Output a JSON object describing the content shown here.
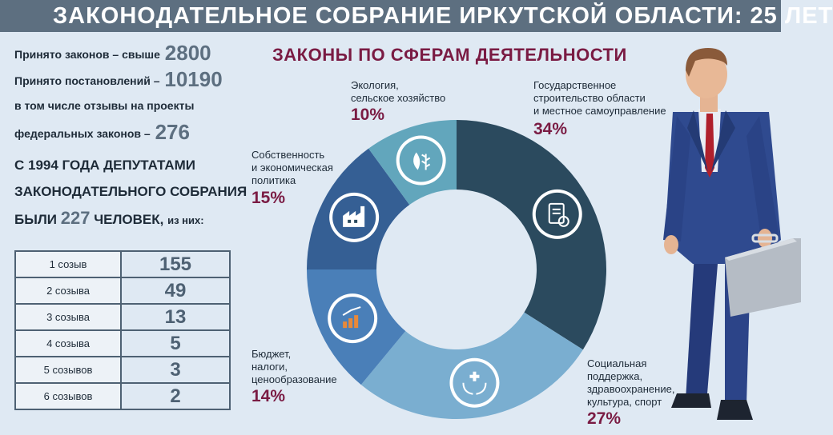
{
  "banner_title": "ЗАКОНОДАТЕЛЬНОЕ СОБРАНИЕ ИРКУТСКОЙ ОБЛАСТИ: 25 ЛЕТ",
  "stats": {
    "laws_label": "Принято законов – свыше",
    "laws_value": "2800",
    "resolutions_label": "Принято постановлений –",
    "resolutions_value": "10190",
    "reviews_line1": "в том числе отзывы на проекты",
    "reviews_line2": "федеральных законов –",
    "reviews_value": "276"
  },
  "deputies": {
    "line1": "С 1994 ГОДА ДЕПУТАТАМИ",
    "line2": "ЗАКОНОДАТЕЛЬНОГО СОБРАНИЯ",
    "line3_prefix": "БЫЛИ",
    "total": "227",
    "line3_suffix": "ЧЕЛОВЕК,",
    "line3_small": "из них:"
  },
  "convocations": [
    {
      "label": "1 созыв",
      "value": "155"
    },
    {
      "label": "2 созыва",
      "value": "49"
    },
    {
      "label": "3 созыва",
      "value": "13"
    },
    {
      "label": "4 созыва",
      "value": "5"
    },
    {
      "label": "5 созывов",
      "value": "3"
    },
    {
      "label": "6 созывов",
      "value": "2"
    }
  ],
  "chart_data": {
    "type": "pie",
    "title": "ЗАКОНЫ ПО СФЕРАМ ДЕЯТЕЛЬНОСТИ",
    "slices": [
      {
        "label_lines": [
          "Государственное",
          "строительство области",
          "и местное самоуправление"
        ],
        "value": 34,
        "pct_text": "34%",
        "color": "#2b4a5e",
        "icon": "document-check-icon"
      },
      {
        "label_lines": [
          "Социальная",
          "поддержка,",
          "здравоохранение,",
          "культура, спорт"
        ],
        "value": 27,
        "pct_text": "27%",
        "color": "#7aaed0",
        "icon": "health-hands-icon"
      },
      {
        "label_lines": [
          "Бюджет,",
          "налоги,",
          "ценообразование"
        ],
        "value": 14,
        "pct_text": "14%",
        "color": "#4a7fb8",
        "icon": "growth-chart-icon"
      },
      {
        "label_lines": [
          "Собственность",
          "и экономическая",
          "политика"
        ],
        "value": 15,
        "pct_text": "15%",
        "color": "#355f94",
        "icon": "factory-icon"
      },
      {
        "label_lines": [
          "Экология,",
          "сельское хозяйство"
        ],
        "value": 10,
        "pct_text": "10%",
        "color": "#62a6bc",
        "icon": "plant-sprinkler-icon"
      }
    ]
  }
}
